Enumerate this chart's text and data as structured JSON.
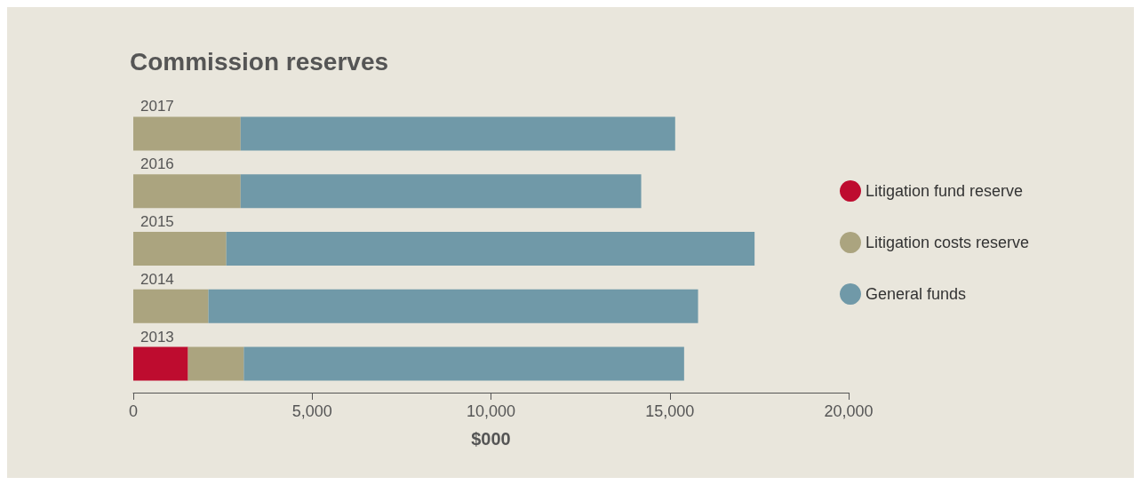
{
  "chart_data": {
    "type": "bar",
    "title": "Commission reserves",
    "xlabel": "$000",
    "orientation": "horizontal",
    "stacked": true,
    "categories": [
      "2017",
      "2016",
      "2015",
      "2014",
      "2013"
    ],
    "series": [
      {
        "name": "Litigation fund reserve",
        "color": "#be0c2f",
        "values": [
          null,
          null,
          null,
          null,
          1530
        ]
      },
      {
        "name": "Litigation costs reserve",
        "color": "#aba47f",
        "values": [
          3000,
          3000,
          2600,
          2100,
          1560
        ]
      },
      {
        "name": "General funds",
        "color": "#7099a8",
        "values": [
          12150,
          11200,
          14770,
          13690,
          12310
        ]
      }
    ],
    "xlim": [
      0,
      20000
    ],
    "xticks": [
      0,
      {
        "value": 5000,
        "label": "5,000"
      },
      {
        "value": 10000,
        "label": "10,000"
      },
      {
        "value": 15000,
        "label": "15,000"
      },
      {
        "value": 20000,
        "label": "20,000"
      }
    ],
    "grid": false,
    "legend": "right"
  }
}
